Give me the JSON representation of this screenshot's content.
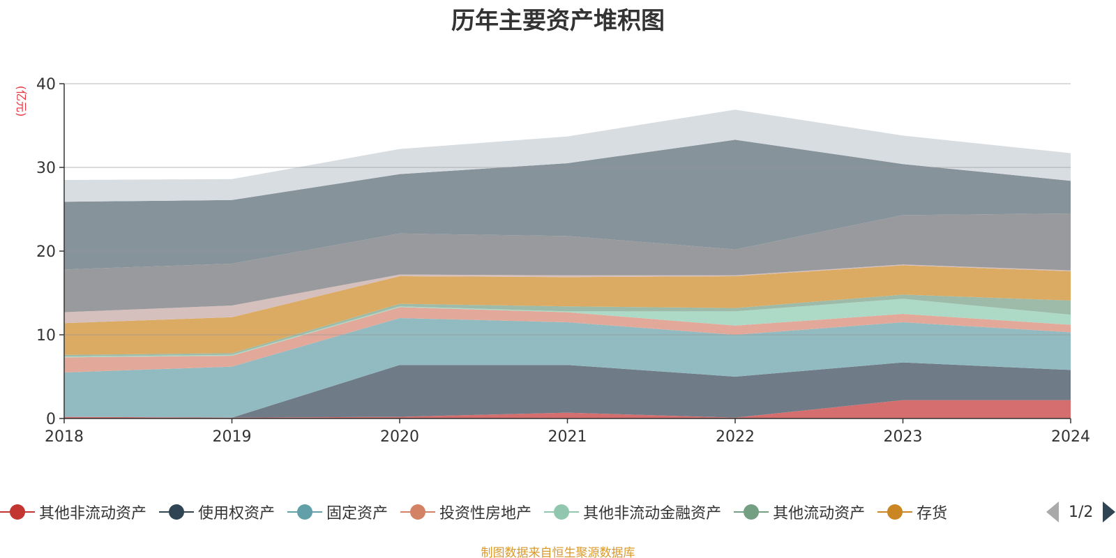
{
  "chart_data": {
    "type": "area",
    "stacked": true,
    "title": "历年主要资产堆积图",
    "ylabel": "(亿元)",
    "xlabel": "",
    "x": [
      "2018",
      "2019",
      "2020",
      "2021",
      "2022",
      "2023",
      "2024"
    ],
    "ylim": [
      0,
      40
    ],
    "yticks": [
      0,
      10,
      20,
      30,
      40
    ],
    "grid": true,
    "legend_position": "bottom",
    "series": [
      {
        "name": "其他非流动资产",
        "color": "#c23531",
        "fill": "#d56f6f",
        "values": [
          0.2,
          0.1,
          0.2,
          0.7,
          0.1,
          2.2,
          2.2
        ]
      },
      {
        "name": "使用权资产",
        "color": "#2f4554",
        "fill": "#6f7c87",
        "values": [
          0.0,
          0.0,
          6.2,
          5.7,
          4.9,
          4.5,
          3.6
        ]
      },
      {
        "name": "固定资产",
        "color": "#61a0a8",
        "fill": "#92bbc1",
        "values": [
          5.3,
          6.1,
          5.6,
          5.1,
          5.0,
          4.8,
          4.5
        ]
      },
      {
        "name": "投资性房地产",
        "color": "#d48265",
        "fill": "#e2a99a",
        "values": [
          1.8,
          1.3,
          1.3,
          1.2,
          1.1,
          1.0,
          0.9
        ]
      },
      {
        "name": "其他非流动金融资产",
        "color": "#91c7ae",
        "fill": "#addac6",
        "values": [
          0.1,
          0.1,
          0.1,
          0.1,
          1.7,
          1.8,
          1.2
        ]
      },
      {
        "name": "其他流动资产",
        "color": "#749f83",
        "fill": "#9dbba8",
        "values": [
          0.2,
          0.2,
          0.3,
          0.6,
          0.4,
          0.5,
          1.7
        ]
      },
      {
        "name": "存货",
        "color": "#ca8622",
        "fill": "#dbab64",
        "values": [
          3.8,
          4.3,
          3.3,
          3.5,
          3.8,
          3.5,
          3.5
        ]
      },
      {
        "name": "",
        "color": "#bda29a",
        "fill": "#d6c0bd",
        "values": [
          1.3,
          1.4,
          0.2,
          0.2,
          0.1,
          0.1,
          0.1
        ]
      },
      {
        "name": "",
        "color": "#6e7074",
        "fill": "#999a9d",
        "values": [
          5.1,
          5.0,
          4.9,
          4.7,
          3.1,
          5.9,
          6.8
        ]
      },
      {
        "name": "",
        "color": "#546570",
        "fill": "#87939a",
        "values": [
          8.1,
          7.6,
          7.1,
          8.7,
          13.1,
          6.1,
          3.9
        ]
      },
      {
        "name": "",
        "color": "#c4ccd3",
        "fill": "#d8dde2",
        "values": [
          2.6,
          2.5,
          3.0,
          3.2,
          3.6,
          3.4,
          3.3
        ]
      }
    ]
  },
  "legend": {
    "page": "1/2"
  },
  "footer": {
    "source": "制图数据来自恒生聚源数据库"
  }
}
